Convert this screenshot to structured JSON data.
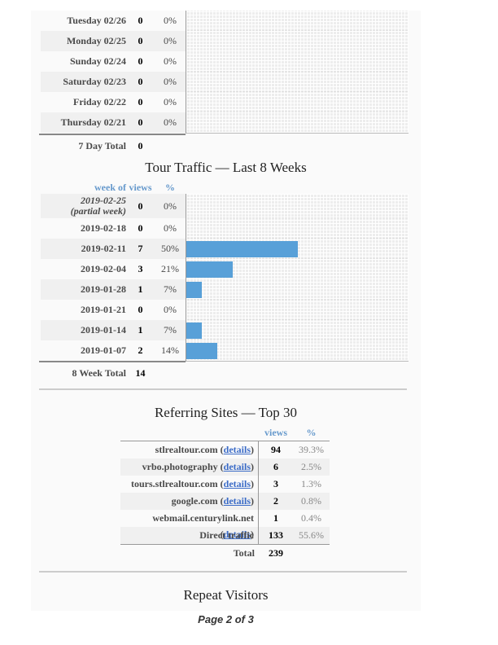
{
  "page": {
    "footer": "Page 2 of 3"
  },
  "colors": {
    "accent_blue": "#6699cc",
    "link_blue": "#3a6bc7",
    "bar_blue": "#58a0d8",
    "content_bg": "#fafafa",
    "alt_row_bg": "#f0f0f0"
  },
  "day_table": {
    "rows": [
      {
        "label": "Tuesday 02/26",
        "views": "0",
        "pct": "0%"
      },
      {
        "label": "Monday 02/25",
        "views": "0",
        "pct": "0%"
      },
      {
        "label": "Sunday 02/24",
        "views": "0",
        "pct": "0%"
      },
      {
        "label": "Saturday 02/23",
        "views": "0",
        "pct": "0%"
      },
      {
        "label": "Friday 02/22",
        "views": "0",
        "pct": "0%"
      },
      {
        "label": "Thursday 02/21",
        "views": "0",
        "pct": "0%"
      }
    ],
    "total_label": "7 Day Total",
    "total_views": "0"
  },
  "week_section": {
    "title": "Tour Traffic — Last 8 Weeks",
    "header": {
      "week_of": "week of",
      "views": "views",
      "pct": "%"
    },
    "rows": [
      {
        "label": "2019-02-25",
        "label2": "(partial week)",
        "italic": true,
        "views": "0",
        "pct": "0%",
        "bar_pct": 0
      },
      {
        "label": "2019-02-18",
        "views": "0",
        "pct": "0%",
        "bar_pct": 0
      },
      {
        "label": "2019-02-11",
        "views": "7",
        "pct": "50%",
        "bar_pct": 50
      },
      {
        "label": "2019-02-04",
        "views": "3",
        "pct": "21%",
        "bar_pct": 21
      },
      {
        "label": "2019-01-28",
        "views": "1",
        "pct": "7%",
        "bar_pct": 7
      },
      {
        "label": "2019-01-21",
        "views": "0",
        "pct": "0%",
        "bar_pct": 0
      },
      {
        "label": "2019-01-14",
        "views": "1",
        "pct": "7%",
        "bar_pct": 7
      },
      {
        "label": "2019-01-07",
        "views": "2",
        "pct": "14%",
        "bar_pct": 14
      }
    ],
    "total_label": "8 Week Total",
    "total_views": "14"
  },
  "referring": {
    "title": "Referring Sites — Top 30",
    "header": {
      "views": "views",
      "pct": "%"
    },
    "details_label": "details",
    "rows": [
      {
        "site": "stlrealtour.com",
        "details": true,
        "views": "94",
        "pct": "39.3%"
      },
      {
        "site": "vrbo.photography",
        "details": true,
        "views": "6",
        "pct": "2.5%"
      },
      {
        "site": "tours.stlrealtour.com",
        "details": true,
        "views": "3",
        "pct": "1.3%"
      },
      {
        "site": "google.com",
        "details": true,
        "views": "2",
        "pct": "0.8%"
      },
      {
        "site": "webmail.centurylink.net",
        "details": true,
        "views": "1",
        "pct": "0.4%"
      },
      {
        "site": "Direct traffic",
        "details": false,
        "views": "133",
        "pct": "55.6%"
      }
    ],
    "total_label": "Total",
    "total_views": "239"
  },
  "repeat_section": {
    "title": "Repeat Visitors"
  },
  "chart_data": [
    {
      "type": "bar",
      "orientation": "horizontal",
      "title": "",
      "categories": [
        "Tuesday 02/26",
        "Monday 02/25",
        "Sunday 02/24",
        "Saturday 02/23",
        "Friday 02/22",
        "Thursday 02/21"
      ],
      "values": [
        0,
        0,
        0,
        0,
        0,
        0
      ],
      "percent": [
        0,
        0,
        0,
        0,
        0,
        0
      ],
      "xlim": [
        0,
        100
      ],
      "grid": true,
      "total": 0
    },
    {
      "type": "bar",
      "orientation": "horizontal",
      "title": "Tour Traffic — Last 8 Weeks",
      "categories": [
        "2019-02-25 (partial week)",
        "2019-02-18",
        "2019-02-11",
        "2019-02-04",
        "2019-01-28",
        "2019-01-21",
        "2019-01-14",
        "2019-01-07"
      ],
      "values": [
        0,
        0,
        7,
        3,
        1,
        0,
        1,
        2
      ],
      "percent": [
        0,
        0,
        50,
        21,
        7,
        0,
        7,
        14
      ],
      "xlim": [
        0,
        100
      ],
      "grid": true,
      "total": 14
    }
  ]
}
